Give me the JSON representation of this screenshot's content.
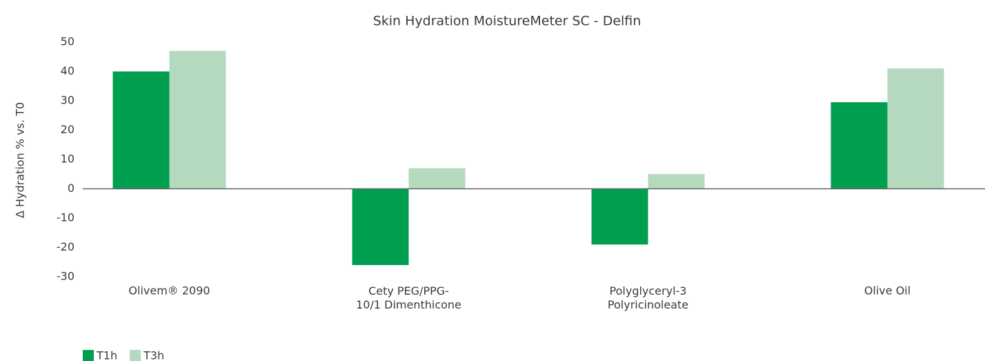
{
  "chart_data": {
    "type": "bar",
    "title": "Skin Hydration MoistureMeter SC - Delfin",
    "y_label": "Δ Hydration % vs. T0",
    "categories": [
      "Olivem® 2090",
      "Cety PEG/PPG-\n10/1 Dimenthicone",
      "Polyglyceryl-3\nPolyricinoleate",
      "Olive Oil"
    ],
    "series": [
      {
        "name": "T1h",
        "color": "#009e4f",
        "values": [
          40,
          -26,
          -19,
          29.5
        ]
      },
      {
        "name": "T3h",
        "color": "#b5d9bf",
        "values": [
          47,
          7,
          5,
          41
        ]
      }
    ],
    "ylim": [
      -30,
      50
    ],
    "yticks": [
      -30,
      -20,
      -10,
      0,
      10,
      20,
      30,
      40,
      50
    ],
    "grid": false,
    "legend": "bottom-left"
  }
}
